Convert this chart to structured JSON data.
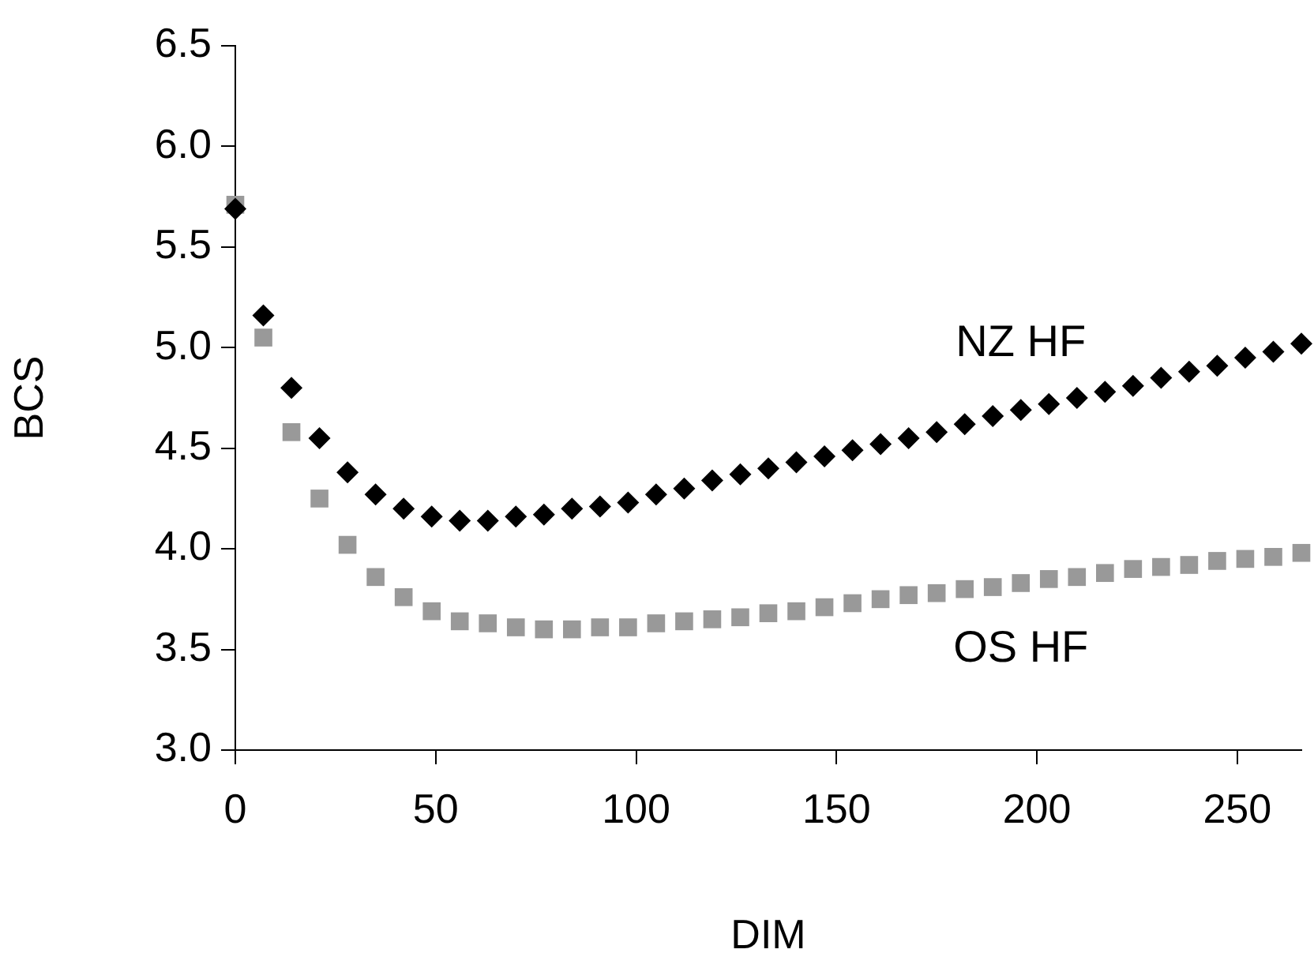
{
  "chart_data": {
    "type": "scatter",
    "xlabel": "DIM",
    "ylabel": "BCS",
    "xlim": [
      0,
      266
    ],
    "xticks": [
      0,
      50,
      100,
      150,
      200,
      250
    ],
    "ylim": [
      3.0,
      6.5
    ],
    "yticks": [
      {
        "value": 3.0,
        "label": "3.0"
      },
      {
        "value": 3.5,
        "label": "3.5"
      },
      {
        "value": 4.0,
        "label": "4.0"
      },
      {
        "value": 4.5,
        "label": "4.5"
      },
      {
        "value": 5.0,
        "label": "5.0"
      },
      {
        "value": 5.5,
        "label": "5.5"
      },
      {
        "value": 6.0,
        "label": "6.0"
      },
      {
        "value": 6.5,
        "label": "6.5"
      }
    ],
    "grid": false,
    "legend": false,
    "x": [
      0,
      7,
      14,
      21,
      28,
      35,
      42,
      49,
      56,
      63,
      70,
      77,
      84,
      91,
      98,
      105,
      112,
      119,
      126,
      133,
      140,
      147,
      154,
      161,
      168,
      175,
      182,
      189,
      196,
      203,
      210,
      217,
      224,
      231,
      238,
      245,
      252,
      259,
      266
    ],
    "series": [
      {
        "name": "NZ HF",
        "color": "#000000",
        "marker": "diamond",
        "values": [
          5.69,
          5.16,
          4.8,
          4.55,
          4.38,
          4.27,
          4.2,
          4.16,
          4.14,
          4.14,
          4.16,
          4.17,
          4.2,
          4.21,
          4.23,
          4.27,
          4.3,
          4.34,
          4.37,
          4.4,
          4.43,
          4.46,
          4.49,
          4.52,
          4.55,
          4.58,
          4.62,
          4.66,
          4.69,
          4.72,
          4.75,
          4.78,
          4.81,
          4.85,
          4.88,
          4.91,
          4.95,
          4.98,
          5.02
        ]
      },
      {
        "name": "OS HF",
        "color": "#999999",
        "marker": "square",
        "values": [
          5.71,
          5.05,
          4.58,
          4.25,
          4.02,
          3.86,
          3.76,
          3.69,
          3.64,
          3.63,
          3.61,
          3.6,
          3.6,
          3.61,
          3.61,
          3.63,
          3.64,
          3.65,
          3.66,
          3.68,
          3.69,
          3.71,
          3.73,
          3.75,
          3.77,
          3.78,
          3.8,
          3.81,
          3.83,
          3.85,
          3.86,
          3.88,
          3.9,
          3.91,
          3.92,
          3.94,
          3.95,
          3.96,
          3.98
        ]
      }
    ]
  }
}
